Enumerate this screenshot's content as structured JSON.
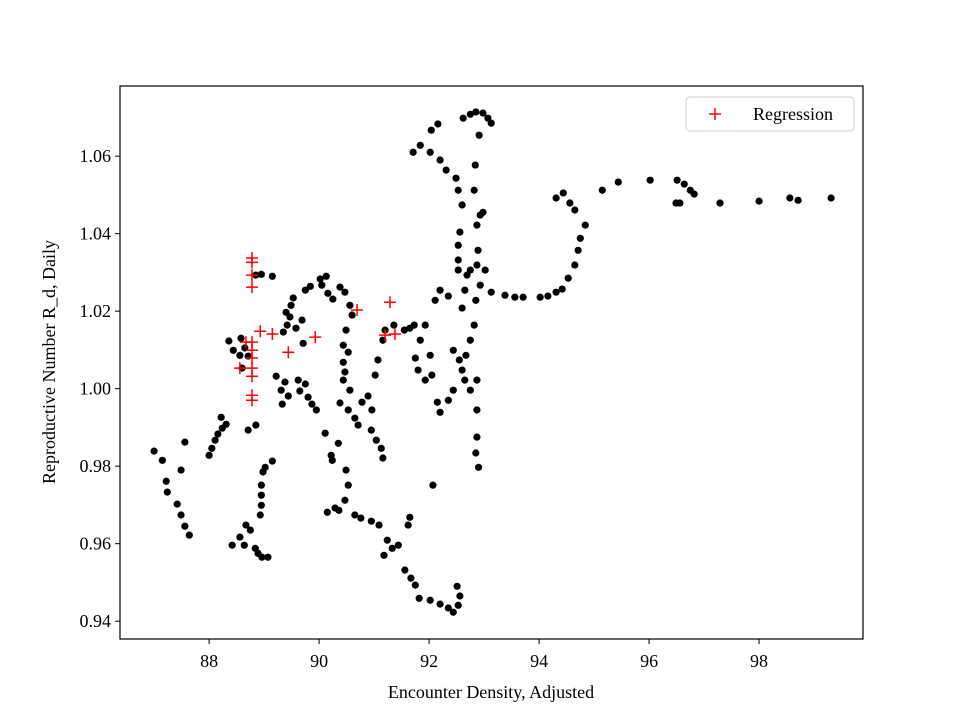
{
  "chart_data": {
    "type": "scatter",
    "xlabel": "Encounter Density, Adjusted",
    "ylabel": "Reproductive Number R_d, Daily",
    "xlim": [
      86.38,
      99.89
    ],
    "ylim": [
      0.9354,
      1.0781
    ],
    "xticks": [
      88,
      90,
      92,
      94,
      96,
      98
    ],
    "yticks": [
      0.94,
      0.96,
      0.98,
      {
        "value": 1,
        "label": "1.00"
      },
      1.02,
      1.04,
      1.06
    ],
    "legend": "upper right",
    "series": [
      {
        "color": "#000000",
        "marker": "dot",
        "x": [
          87.0,
          87.15,
          87.22,
          87.24,
          87.42,
          87.49,
          87.56,
          87.64,
          87.56,
          87.49,
          88.0,
          88.05,
          88.11,
          88.16,
          88.24,
          88.31,
          88.22,
          88.36,
          88.44,
          88.56,
          88.58,
          88.65,
          88.71,
          88.6,
          88.85,
          88.95,
          89.15,
          88.42,
          88.56,
          88.64,
          88.67,
          88.75,
          88.84,
          88.89,
          88.96,
          89.07,
          88.93,
          88.95,
          88.95,
          88.95,
          88.98,
          89.02,
          89.15,
          88.71,
          88.85,
          89.22,
          89.31,
          89.33,
          89.38,
          89.44,
          89.62,
          89.75,
          89.65,
          89.8,
          89.87,
          89.95,
          89.35,
          89.42,
          89.47,
          89.49,
          89.53,
          89.4,
          89.58,
          89.71,
          89.69,
          89.75,
          89.84,
          90.02,
          90.13,
          90.05,
          90.16,
          90.25,
          90.38,
          90.47,
          90.56,
          90.6,
          90.49,
          90.44,
          90.53,
          90.44,
          90.47,
          90.44,
          90.56,
          90.38,
          90.53,
          90.65,
          90.71,
          90.78,
          90.89,
          91.02,
          91.07,
          91.16,
          91.2,
          91.36,
          91.55,
          91.65,
          91.73,
          91.93,
          91.84,
          91.75,
          91.8,
          91.93,
          92.02,
          92.05,
          90.22,
          90.11,
          90.24,
          90.35,
          90.49,
          90.53,
          90.47,
          90.36,
          90.15,
          90.29,
          90.65,
          90.76,
          90.95,
          91.09,
          91.18,
          91.24,
          91.33,
          91.44,
          91.56,
          91.67,
          91.75,
          91.82,
          92.02,
          92.2,
          92.35,
          92.44,
          92.53,
          92.56,
          92.51,
          92.07,
          91.65,
          91.62,
          90.95,
          91.04,
          91.13,
          91.16,
          90.96,
          92.6,
          92.65,
          92.69,
          92.53,
          92.53,
          92.53,
          92.56,
          92.6,
          92.53,
          92.49,
          92.31,
          92.2,
          92.02,
          91.84,
          91.71,
          92.04,
          92.16,
          92.62,
          92.75,
          92.85,
          92.98,
          93.07,
          93.13,
          92.91,
          92.84,
          92.82,
          92.87,
          92.93,
          92.98,
          92.89,
          92.87,
          92.93,
          92.85,
          92.82,
          92.75,
          92.67,
          92.6,
          92.65,
          92.75,
          92.87,
          92.87,
          92.87,
          92.85,
          92.9,
          92.44,
          92.35,
          92.2,
          92.15,
          92.55,
          92.44,
          92.11,
          92.2,
          92.35,
          92.75,
          93.02,
          93.13,
          93.38,
          93.56,
          93.71,
          94.02,
          94.16,
          94.31,
          94.42,
          94.53,
          94.65,
          94.71,
          94.75,
          94.84,
          94.65,
          94.56,
          94.44,
          94.31,
          95.15,
          95.44,
          96.02,
          96.51,
          96.64,
          96.75,
          96.82,
          96.49,
          96.56,
          97.29,
          98.0,
          98.56,
          98.71,
          99.31
        ],
        "y": [
          0.9839,
          0.9815,
          0.9761,
          0.9733,
          0.9702,
          0.9674,
          0.9645,
          0.9622,
          0.9862,
          0.979,
          0.9828,
          0.9846,
          0.9867,
          0.9883,
          0.9898,
          0.9908,
          0.9926,
          1.0123,
          1.0099,
          1.0086,
          1.013,
          1.0105,
          1.0084,
          1.0053,
          1.0293,
          1.0295,
          1.029,
          0.9596,
          0.9617,
          0.9596,
          0.9648,
          0.9635,
          0.9588,
          0.9575,
          0.9565,
          0.9565,
          0.9674,
          0.9699,
          0.9725,
          0.9751,
          0.9785,
          0.9797,
          0.9813,
          0.9893,
          0.9906,
          1.0032,
          0.9996,
          0.996,
          1.0017,
          0.9981,
          1.0022,
          1.0012,
          0.9994,
          0.9978,
          0.996,
          0.9945,
          1.0146,
          1.0164,
          1.0185,
          1.0215,
          1.0234,
          1.0197,
          1.0156,
          1.0117,
          1.0177,
          1.0254,
          1.0264,
          1.0283,
          1.029,
          1.0267,
          1.0246,
          1.0231,
          1.0262,
          1.0249,
          1.0215,
          1.019,
          1.0151,
          1.0112,
          1.0094,
          1.0068,
          1.0043,
          1.0022,
          0.9996,
          0.9963,
          0.9945,
          0.9924,
          0.9906,
          0.9965,
          0.9981,
          1.0035,
          1.0074,
          1.0125,
          1.0151,
          1.0164,
          1.0151,
          1.0156,
          1.0164,
          1.0164,
          1.0125,
          1.0079,
          1.0048,
          1.0022,
          1.0086,
          1.0035,
          0.9828,
          0.9885,
          0.9815,
          0.9859,
          0.979,
          0.9751,
          0.9712,
          0.9686,
          0.9681,
          0.9692,
          0.9674,
          0.9666,
          0.9658,
          0.9648,
          0.957,
          0.9609,
          0.9588,
          0.9596,
          0.9532,
          0.9511,
          0.9493,
          0.9459,
          0.9454,
          0.9444,
          0.9434,
          0.9423,
          0.9441,
          0.9465,
          0.949,
          0.9751,
          0.9668,
          0.9648,
          0.9893,
          0.9867,
          0.9846,
          0.9821,
          0.9945,
          1.0208,
          1.0254,
          1.0293,
          1.0306,
          1.0332,
          1.037,
          1.0404,
          1.0474,
          1.0512,
          1.0543,
          1.0564,
          1.059,
          1.061,
          1.0628,
          1.061,
          1.0667,
          1.0683,
          1.0698,
          1.0708,
          1.0714,
          1.0711,
          1.0698,
          1.0685,
          1.0654,
          1.0577,
          1.0512,
          1.0422,
          1.0448,
          1.0455,
          1.0357,
          1.0319,
          1.0267,
          1.0228,
          1.0164,
          1.0125,
          1.0086,
          1.0048,
          1.0022,
          0.9996,
          1.0022,
          0.9945,
          0.9875,
          0.9834,
          0.9797,
          0.9996,
          0.997,
          0.9939,
          0.9965,
          1.0074,
          1.0099,
          1.0228,
          1.0254,
          1.0239,
          1.0306,
          1.0306,
          1.0249,
          1.0241,
          1.0236,
          1.0236,
          1.0236,
          1.0239,
          1.0249,
          1.0257,
          1.0285,
          1.0319,
          1.0357,
          1.0388,
          1.0422,
          1.0461,
          1.0479,
          1.0505,
          1.0492,
          1.0512,
          1.0533,
          1.0538,
          1.0538,
          1.0528,
          1.0512,
          1.0502,
          1.0479,
          1.0479,
          1.0479,
          1.0484,
          1.0492,
          1.0486,
          1.0492
        ]
      },
      {
        "name": "Regression",
        "color": "#ff0000",
        "marker": "plus",
        "x": [
          88.78,
          88.78,
          88.78,
          88.78,
          88.67,
          88.78,
          88.78,
          88.78,
          88.78,
          88.78,
          88.56,
          88.78,
          88.78,
          88.93,
          89.15,
          89.44,
          89.93,
          90.69,
          91.29,
          91.38,
          91.2
        ],
        "y": [
          1.0337,
          1.0326,
          1.0293,
          1.0262,
          1.012,
          1.012,
          1.0099,
          1.0079,
          1.0053,
          1.0032,
          1.0053,
          0.9983,
          0.997,
          1.0148,
          1.0141,
          1.0094,
          1.0133,
          1.0203,
          1.0223,
          1.0141,
          1.0138
        ]
      }
    ]
  }
}
